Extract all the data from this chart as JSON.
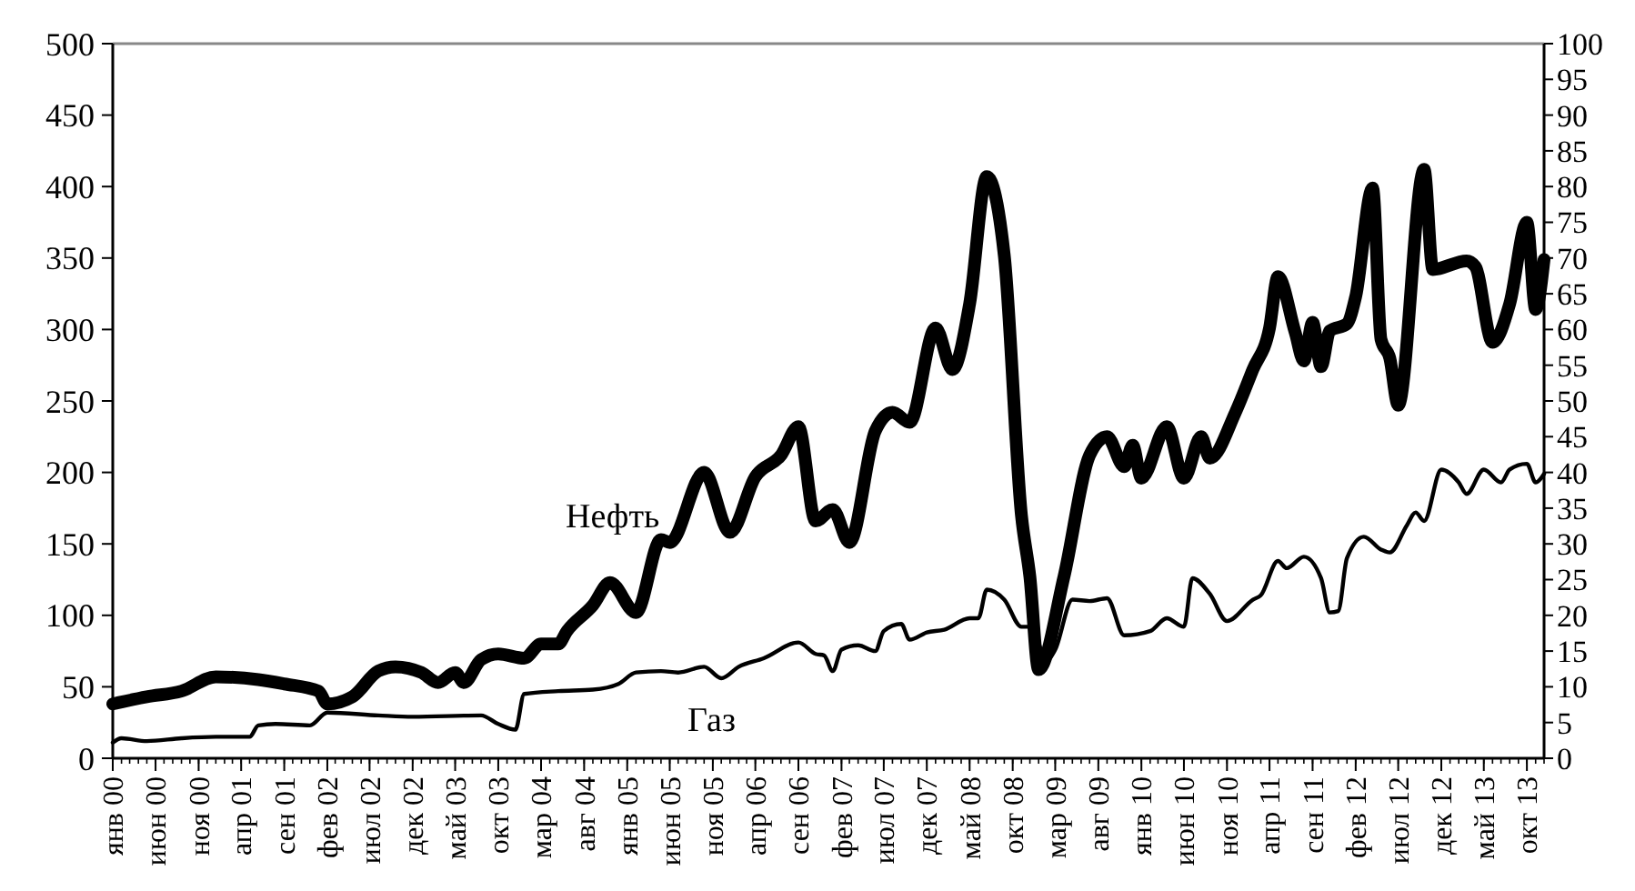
{
  "chart_data": {
    "type": "line",
    "xlim": [
      "2000-01",
      "2013-12"
    ],
    "xticks": [
      {
        "value": "2000-01",
        "label": "янв 00"
      },
      {
        "value": "2000-06",
        "label": "июн 00"
      },
      {
        "value": "2000-11",
        "label": "ноя 00"
      },
      {
        "value": "2001-04",
        "label": "апр 01"
      },
      {
        "value": "2001-09",
        "label": "сен 01"
      },
      {
        "value": "2002-02",
        "label": "фев 02"
      },
      {
        "value": "2002-07",
        "label": "июл 02"
      },
      {
        "value": "2002-12",
        "label": "дек 02"
      },
      {
        "value": "2003-05",
        "label": "май 03"
      },
      {
        "value": "2003-10",
        "label": "окт 03"
      },
      {
        "value": "2004-03",
        "label": "мар 04"
      },
      {
        "value": "2004-08",
        "label": "авг 04"
      },
      {
        "value": "2005-01",
        "label": "янв 05"
      },
      {
        "value": "2005-06",
        "label": "июн 05"
      },
      {
        "value": "2005-11",
        "label": "ноя 05"
      },
      {
        "value": "2006-04",
        "label": "апр 06"
      },
      {
        "value": "2006-09",
        "label": "сен 06"
      },
      {
        "value": "2007-02",
        "label": "фев 07"
      },
      {
        "value": "2007-07",
        "label": "июл 07"
      },
      {
        "value": "2007-12",
        "label": "дек 07"
      },
      {
        "value": "2008-05",
        "label": "май 08"
      },
      {
        "value": "2008-10",
        "label": "окт 08"
      },
      {
        "value": "2009-03",
        "label": "мар 09"
      },
      {
        "value": "2009-08",
        "label": "авг 09"
      },
      {
        "value": "2010-01",
        "label": "янв 10"
      },
      {
        "value": "2010-06",
        "label": "июн 10"
      },
      {
        "value": "2010-11",
        "label": "ноя 10"
      },
      {
        "value": "2011-04",
        "label": "апр 11"
      },
      {
        "value": "2011-09",
        "label": "сен 11"
      },
      {
        "value": "2012-02",
        "label": "фев 12"
      },
      {
        "value": "2012-07",
        "label": "июл 12"
      },
      {
        "value": "2012-12",
        "label": "дек 12"
      },
      {
        "value": "2013-05",
        "label": "май 13"
      },
      {
        "value": "2013-10",
        "label": "окт 13"
      }
    ],
    "ylim": [
      0,
      500
    ],
    "yticks": [
      0,
      50,
      100,
      150,
      200,
      250,
      300,
      350,
      400,
      450,
      500
    ],
    "y2lim": [
      0,
      100
    ],
    "y2ticks": [
      0,
      5,
      10,
      15,
      20,
      25,
      30,
      35,
      40,
      45,
      50,
      55,
      60,
      65,
      70,
      75,
      80,
      85,
      90,
      95,
      100
    ],
    "grid": false,
    "marker": "none",
    "line_style": "solid",
    "series": [
      {
        "name": "Нефть",
        "color": "#000000",
        "x": [
          "2000-01",
          "2000-05",
          "2000-09",
          "2001-01",
          "2001-06",
          "2001-09",
          "2002-01",
          "2002-02",
          "2002-05",
          "2002-08",
          "2002-10",
          "2003-01",
          "2003-03",
          "2003-05",
          "2003-06",
          "2003-08",
          "2003-10",
          "2004-01",
          "2004-03",
          "2004-05",
          "2004-06",
          "2004-09",
          "2004-11",
          "2005-02",
          "2005-05",
          "2005-06",
          "2005-10",
          "2006-01",
          "2006-04",
          "2006-07",
          "2006-09",
          "2006-11",
          "2007-01",
          "2007-03",
          "2007-06",
          "2007-08",
          "2007-10",
          "2008-01",
          "2008-03",
          "2008-05",
          "2008-07",
          "2008-09",
          "2008-11",
          "2008-12",
          "2009-01",
          "2009-04",
          "2009-07",
          "2009-09",
          "2009-11",
          "2009-12",
          "2010-01",
          "2010-04",
          "2010-06",
          "2010-08",
          "2010-09",
          "2010-12",
          "2011-02",
          "2011-04",
          "2011-05",
          "2011-07",
          "2011-08",
          "2011-09",
          "2011-10",
          "2011-11",
          "2012-01",
          "2012-02",
          "2012-04",
          "2012-05",
          "2012-06",
          "2012-07",
          "2012-10",
          "2012-11",
          "2013-03",
          "2013-04",
          "2013-06",
          "2013-08",
          "2013-10",
          "2013-11",
          "2013-12"
        ],
        "values": [
          38,
          43,
          47,
          57,
          55,
          52,
          47,
          38,
          43,
          61,
          64,
          60,
          53,
          60,
          53,
          69,
          73,
          70,
          80,
          80,
          89,
          107,
          123,
          102,
          153,
          151,
          200,
          158,
          197,
          212,
          232,
          166,
          174,
          151,
          229,
          242,
          235,
          301,
          272,
          318,
          407,
          352,
          170,
          127,
          62,
          127,
          212,
          225,
          204,
          219,
          196,
          232,
          196,
          225,
          210,
          242,
          272,
          301,
          337,
          298,
          278,
          305,
          274,
          299,
          304,
          323,
          399,
          293,
          280,
          247,
          412,
          342,
          348,
          344,
          291,
          318,
          375,
          314,
          349
        ]
      },
      {
        "name": "Газ",
        "color": "#000000",
        "x": [
          "2000-01",
          "2000-02",
          "2000-05",
          "2000-09",
          "2001-01",
          "2001-05",
          "2001-06",
          "2001-08",
          "2001-12",
          "2002-02",
          "2002-08",
          "2002-12",
          "2003-08",
          "2003-10",
          "2003-12",
          "2004-01",
          "2004-05",
          "2004-09",
          "2004-12",
          "2005-02",
          "2005-05",
          "2005-07",
          "2005-10",
          "2005-12",
          "2006-02",
          "2006-05",
          "2006-09",
          "2006-11",
          "2006-12",
          "2007-01",
          "2007-02",
          "2007-04",
          "2007-06",
          "2007-07",
          "2007-09",
          "2007-10",
          "2007-12",
          "2008-02",
          "2008-05",
          "2008-06",
          "2008-07",
          "2008-09",
          "2008-11",
          "2008-12",
          "2009-02",
          "2009-03",
          "2009-05",
          "2009-07",
          "2009-09",
          "2009-11",
          "2010-02",
          "2010-04",
          "2010-06",
          "2010-07",
          "2010-09",
          "2010-11",
          "2011-02",
          "2011-03",
          "2011-05",
          "2011-06",
          "2011-08",
          "2011-10",
          "2011-11",
          "2011-12",
          "2012-01",
          "2012-03",
          "2012-05",
          "2012-06",
          "2012-08",
          "2012-09",
          "2012-10",
          "2012-12",
          "2013-02",
          "2013-03",
          "2013-05",
          "2013-07",
          "2013-08",
          "2013-10",
          "2013-11",
          "2013-12"
        ],
        "values": [
          11,
          14,
          12,
          14,
          15,
          15,
          23,
          24,
          23,
          32,
          30,
          29,
          30,
          24,
          20,
          45,
          47,
          48,
          52,
          60,
          61,
          60,
          64,
          56,
          64,
          70,
          81,
          73,
          72,
          61,
          76,
          79,
          75,
          89,
          94,
          83,
          88,
          90,
          98,
          98,
          118,
          111,
          92,
          92,
          69,
          76,
          111,
          110,
          112,
          86,
          89,
          98,
          92,
          126,
          115,
          96,
          111,
          114,
          138,
          133,
          141,
          126,
          102,
          103,
          140,
          155,
          146,
          144,
          163,
          172,
          166,
          202,
          193,
          185,
          202,
          193,
          202,
          206,
          193,
          199
        ]
      }
    ]
  }
}
